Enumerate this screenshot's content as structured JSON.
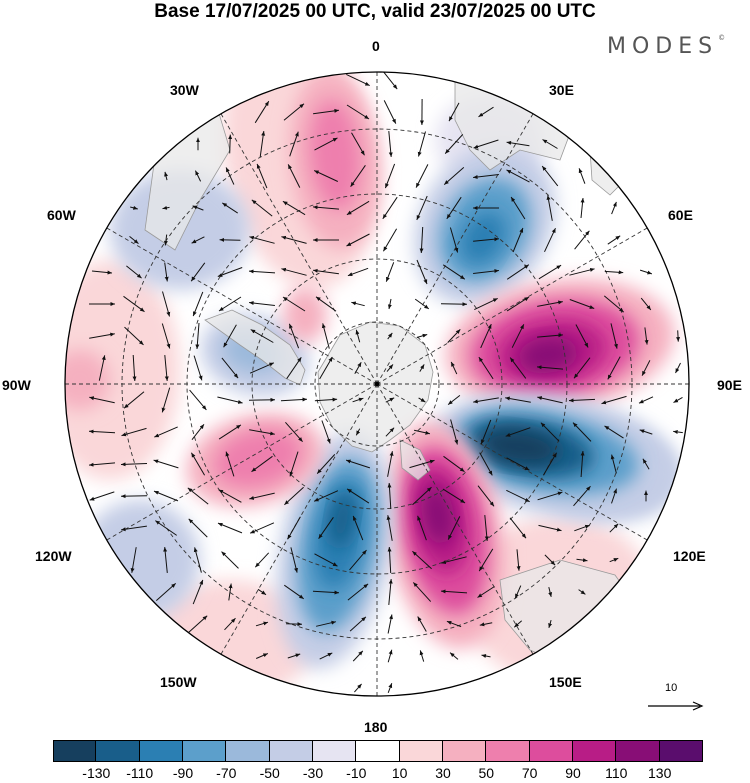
{
  "title": "Base 17/07/2025 00 UTC, valid 23/07/2025 00 UTC",
  "brand": "MODES",
  "brand_mark": "©",
  "longitude_labels": {
    "lon_0": "0",
    "lon_30e": "30E",
    "lon_60e": "60E",
    "lon_90e": "90E",
    "lon_120e": "120E",
    "lon_150e": "150E",
    "lon_180": "180",
    "lon_150w": "150W",
    "lon_120w": "120W",
    "lon_90w": "90W",
    "lon_60w": "60W",
    "lon_30w": "30W"
  },
  "reference_vector": {
    "label": "10"
  },
  "colorbar": {
    "ticks": [
      "-130",
      "-110",
      "-90",
      "-70",
      "-50",
      "-30",
      "-10",
      "10",
      "30",
      "50",
      "70",
      "90",
      "110",
      "130"
    ],
    "colors": [
      "#163f5e",
      "#195e8a",
      "#2b7fb3",
      "#5c9fcb",
      "#9bb9db",
      "#c4cde6",
      "#e6e4f2",
      "#ffffff",
      "#fad7d9",
      "#f5b0c0",
      "#ee7fad",
      "#dd4d9d",
      "#b81d86",
      "#880e76",
      "#5a0d6d"
    ]
  },
  "map_colors": {
    "land": "#e8e8e8",
    "coast": "#9a9a9a",
    "grid": "#333333",
    "arrows": "#111111"
  }
}
